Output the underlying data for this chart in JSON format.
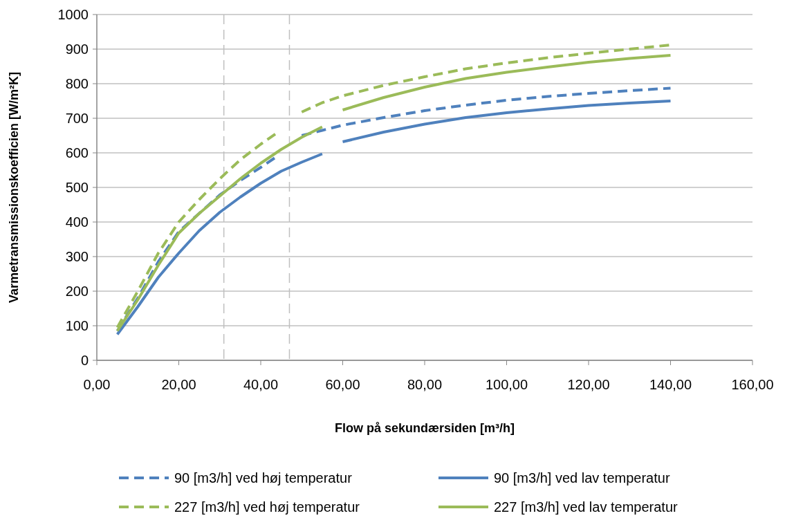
{
  "chart_data": {
    "type": "line",
    "xlabel": "Flow på sekundærsiden [m³/h]",
    "ylabel": "Varmetransmissionskoefficien [W/m²K]",
    "xlim": [
      0,
      160
    ],
    "xticks": [
      {
        "value": 0,
        "label": "0,00"
      },
      {
        "value": 20,
        "label": "20,00"
      },
      {
        "value": 40,
        "label": "40,00"
      },
      {
        "value": 60,
        "label": "60,00"
      },
      {
        "value": 80,
        "label": "80,00"
      },
      {
        "value": 100,
        "label": "100,00"
      },
      {
        "value": 120,
        "label": "120,00"
      },
      {
        "value": 140,
        "label": "140,00"
      },
      {
        "value": 160,
        "label": "160,00"
      }
    ],
    "ylim": [
      0,
      1000
    ],
    "yticks": [
      0,
      100,
      200,
      300,
      400,
      500,
      600,
      700,
      800,
      900,
      1000
    ],
    "grid": "y",
    "legend": "bottom",
    "marker": "none",
    "ref_lines": [
      {
        "axis": "x",
        "value": 31,
        "color": "#bfbfbf",
        "line_style": "dashed"
      },
      {
        "axis": "x",
        "value": 47,
        "color": "#bfbfbf",
        "line_style": "dashed"
      }
    ],
    "series": [
      {
        "name": "90 [m3/h] ved høj temperatur",
        "color": "#4f81bd",
        "line_style": "dashed",
        "x": [
          5,
          10,
          15,
          20,
          25,
          30,
          35,
          40,
          44,
          47,
          50,
          55,
          60,
          70,
          80,
          90,
          100,
          110,
          120,
          130,
          140
        ],
        "values": [
          85,
          180,
          285,
          372,
          425,
          478,
          520,
          558,
          590,
          null,
          650,
          665,
          680,
          702,
          722,
          738,
          752,
          763,
          772,
          780,
          787
        ]
      },
      {
        "name": "90 [m3/h] ved lav temperatur",
        "color": "#4f81bd",
        "line_style": "solid",
        "x": [
          5,
          10,
          15,
          20,
          25,
          30,
          35,
          40,
          45,
          50,
          55,
          58,
          60,
          70,
          80,
          90,
          100,
          110,
          120,
          130,
          140
        ],
        "values": [
          75,
          155,
          240,
          310,
          375,
          428,
          472,
          512,
          547,
          573,
          597,
          null,
          632,
          660,
          683,
          702,
          716,
          727,
          737,
          744,
          750
        ]
      },
      {
        "name": "227 [m3/h] ved høj temperatur",
        "color": "#9bbb59",
        "line_style": "dashed",
        "x": [
          5,
          10,
          15,
          20,
          25,
          30,
          35,
          40,
          44,
          47,
          50,
          55,
          60,
          70,
          80,
          90,
          100,
          110,
          120,
          130,
          140
        ],
        "values": [
          95,
          200,
          310,
          400,
          465,
          525,
          580,
          625,
          658,
          null,
          718,
          745,
          765,
          795,
          820,
          843,
          860,
          875,
          888,
          900,
          912
        ]
      },
      {
        "name": "227 [m3/h] ved lav temperatur",
        "color": "#9bbb59",
        "line_style": "solid",
        "x": [
          5,
          10,
          15,
          20,
          25,
          30,
          35,
          40,
          45,
          50,
          55,
          58,
          60,
          70,
          80,
          90,
          100,
          110,
          120,
          130,
          140
        ],
        "values": [
          85,
          175,
          275,
          368,
          425,
          475,
          525,
          570,
          610,
          645,
          675,
          null,
          724,
          760,
          790,
          815,
          833,
          848,
          862,
          873,
          882
        ]
      }
    ]
  }
}
